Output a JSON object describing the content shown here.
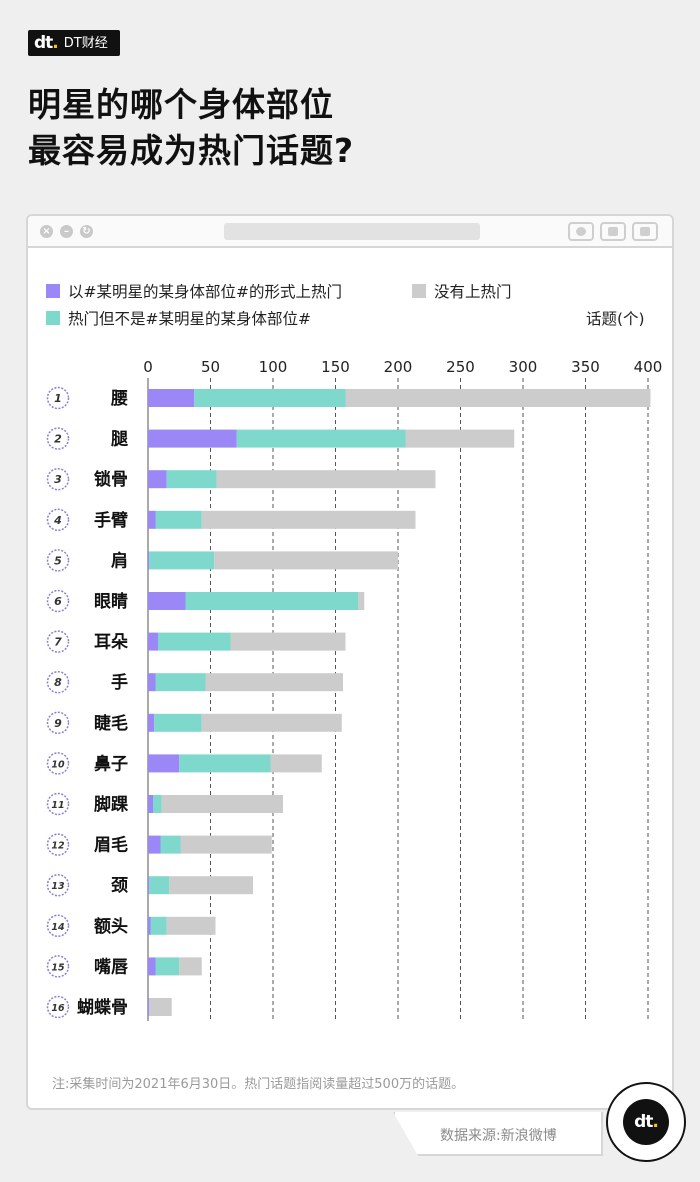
{
  "brand": {
    "mark": "dt",
    "name": "DT财经"
  },
  "title": {
    "line1": "明星的哪个身体部位",
    "line2": "最容易成为热门话题?"
  },
  "legend": [
    {
      "label": "以#某明星的某身体部位#的形式上热门",
      "color": "#9b87f5"
    },
    {
      "label": "没有上热门",
      "color": "#cccccc"
    },
    {
      "label": "热门但不是#某明星的某身体部位#",
      "color": "#7fd8cc"
    }
  ],
  "unit_label": "话题(个)",
  "note": "注:采集时间为2021年6月30日。热门话题指阅读量超过500万的话题。",
  "source": "数据来源:新浪微博",
  "chart_data": {
    "type": "bar",
    "orientation": "horizontal",
    "stacked": true,
    "xlim": [
      0,
      400
    ],
    "x_ticks": [
      "0",
      "50",
      "100",
      "150",
      "200",
      "250",
      "300",
      "350",
      "400"
    ],
    "x_ticks_positions": "top-and-bottom",
    "grid": "vertical dashed",
    "categories": [
      "腰",
      "腿",
      "锁骨",
      "手臂",
      "肩",
      "眼睛",
      "耳朵",
      "手",
      "睫毛",
      "鼻子",
      "脚踝",
      "眉毛",
      "颈",
      "额头",
      "嘴唇",
      "蝴蝶骨"
    ],
    "ranks": [
      "1",
      "2",
      "3",
      "4",
      "5",
      "6",
      "7",
      "8",
      "9",
      "10",
      "11",
      "12",
      "13",
      "14",
      "15",
      "16"
    ],
    "series": [
      {
        "name": "以#某明星的某身体部位#的形式上热门",
        "color": "#9b87f5",
        "values": [
          37,
          71,
          15,
          6,
          1,
          30,
          8,
          6,
          5,
          25,
          4,
          10,
          1,
          2,
          6,
          1
        ]
      },
      {
        "name": "热门但不是#某明星的某身体部位#",
        "color": "#7fd8cc",
        "values": [
          121,
          135,
          40,
          37,
          52,
          138,
          58,
          40,
          38,
          73,
          7,
          16,
          16,
          13,
          19,
          0
        ]
      },
      {
        "name": "没有上热门",
        "color": "#cccccc",
        "values": [
          244,
          87,
          175,
          171,
          147,
          5,
          92,
          110,
          112,
          41,
          97,
          73,
          67,
          39,
          18,
          18
        ]
      }
    ]
  }
}
